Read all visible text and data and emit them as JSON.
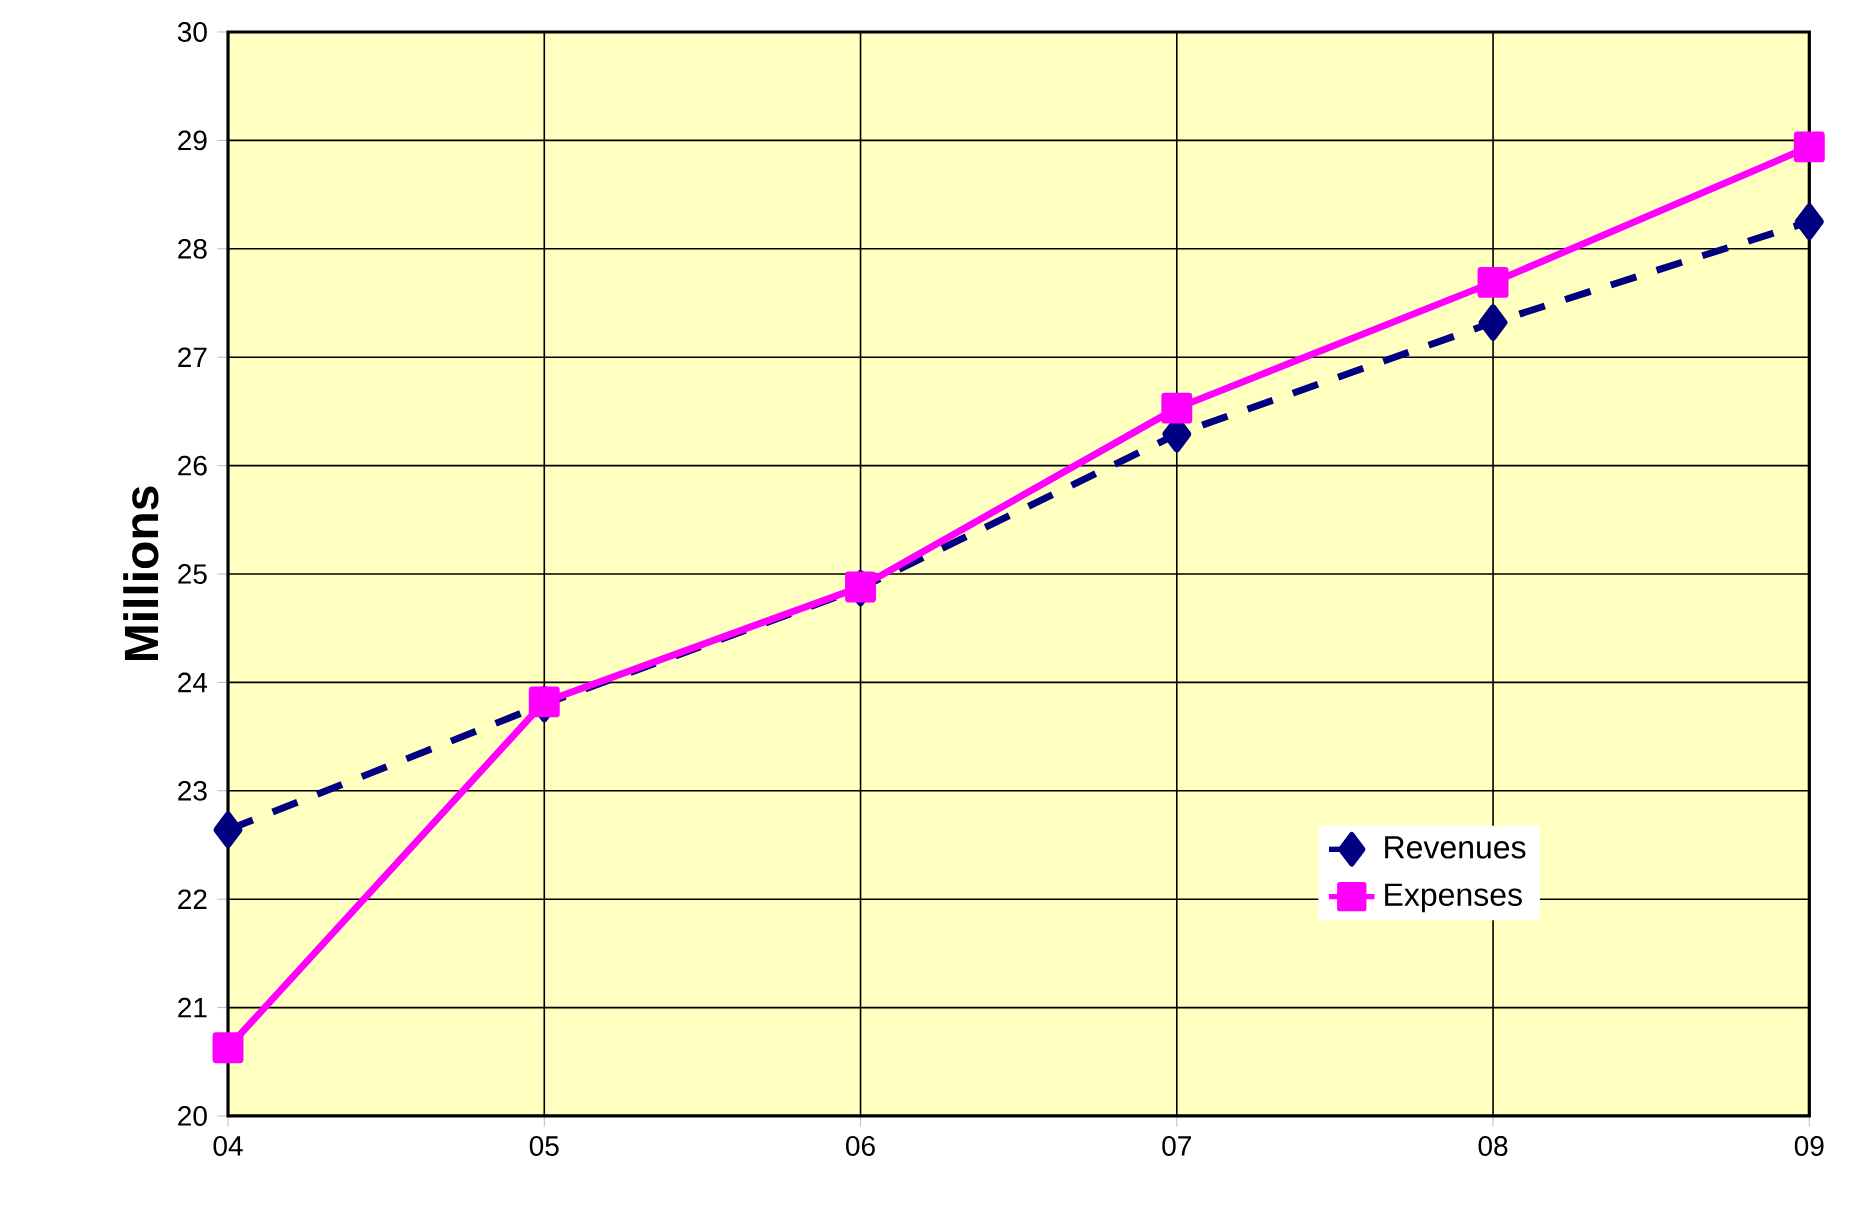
{
  "chart_data": {
    "type": "line",
    "ylabel": "Millions",
    "categories": [
      "04",
      "05",
      "06",
      "07",
      "08",
      "09"
    ],
    "series": [
      {
        "name": "Revenues",
        "color": "#000080",
        "marker": "diamond",
        "line_style": "dashed",
        "values": [
          22.64,
          23.8,
          24.87,
          26.29,
          27.32,
          28.25
        ]
      },
      {
        "name": "Expenses",
        "color": "#ff00ff",
        "marker": "square",
        "line_style": "solid",
        "values": [
          20.63,
          23.82,
          24.88,
          26.53,
          27.69,
          28.94
        ]
      }
    ],
    "ylim": [
      20,
      30
    ],
    "yticks": [
      20,
      21,
      22,
      23,
      24,
      25,
      26,
      27,
      28,
      29,
      30
    ],
    "grid": true,
    "legend": "bottom right"
  }
}
